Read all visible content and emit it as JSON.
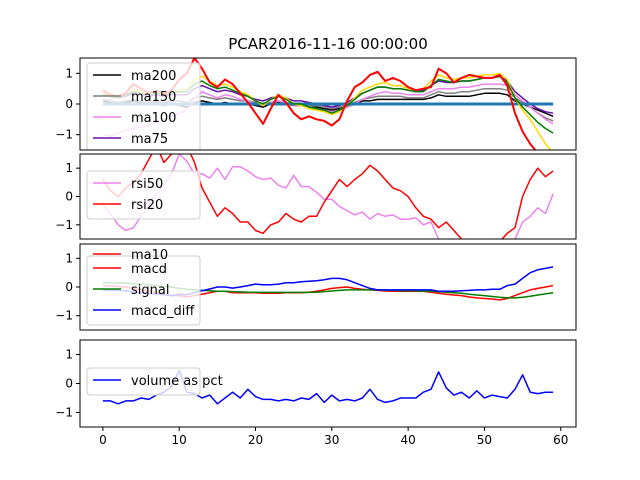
{
  "chart_data": [
    {
      "type": "line",
      "title": "PCAR2016-11-16 00:00:00",
      "ylim": [
        -1.5,
        1.5
      ],
      "yticks": [
        -1,
        0,
        1
      ],
      "xlim": [
        -3,
        62
      ],
      "xticks": [],
      "legend": "upper-left",
      "series": [
        {
          "name": "ma200",
          "color": "#000000",
          "in_legend": true,
          "values": [
            0.1,
            0.05,
            0,
            0.05,
            0.1,
            0.05,
            0,
            0.05,
            -0.05,
            0,
            -0.05,
            -0.1,
            0.05,
            0.1,
            0.05,
            0,
            0.05,
            0,
            0,
            0,
            -0.05,
            -0.1,
            0,
            0.05,
            0,
            -0.05,
            -0.05,
            -0.1,
            -0.1,
            -0.15,
            -0.2,
            -0.15,
            -0.1,
            0,
            0.1,
            0.1,
            0.15,
            0.15,
            0.15,
            0.15,
            0.15,
            0.15,
            0.15,
            0.2,
            0.3,
            0.25,
            0.25,
            0.25,
            0.25,
            0.3,
            0.35,
            0.35,
            0.35,
            0.3,
            0.1,
            0,
            -0.1,
            -0.2,
            -0.3,
            -0.4
          ]
        },
        {
          "name": "ma150",
          "color": "#7f7f7f",
          "in_legend": true,
          "values": [
            0.15,
            0.1,
            0.05,
            0.1,
            0.15,
            0.1,
            0.05,
            0.1,
            0.05,
            0.1,
            0.1,
            0.05,
            0.2,
            0.25,
            0.2,
            0.15,
            0.2,
            0.15,
            0.1,
            0.1,
            0.05,
            0,
            0.05,
            0.1,
            0.05,
            0,
            0,
            -0.05,
            -0.05,
            -0.1,
            -0.15,
            -0.1,
            -0.05,
            0.05,
            0.15,
            0.2,
            0.25,
            0.25,
            0.25,
            0.25,
            0.2,
            0.2,
            0.2,
            0.3,
            0.4,
            0.35,
            0.35,
            0.4,
            0.4,
            0.45,
            0.5,
            0.5,
            0.5,
            0.45,
            0.2,
            0.05,
            -0.1,
            -0.3,
            -0.45,
            -0.55
          ]
        },
        {
          "name": "ma100",
          "color": "#ee82ee",
          "in_legend": true,
          "values": [
            -1.0,
            -1.05,
            -0.95,
            -0.85,
            -0.8,
            -0.75,
            -0.7,
            -0.6,
            -0.5,
            -0.4,
            -0.3,
            -0.2,
            0.2,
            0.4,
            0.3,
            0.2,
            0.3,
            0.25,
            0.15,
            0.1,
            0,
            -0.05,
            0.05,
            0.1,
            0.05,
            -0.05,
            -0.05,
            -0.1,
            -0.15,
            -0.2,
            -0.25,
            -0.2,
            -0.1,
            0,
            0.15,
            0.25,
            0.35,
            0.4,
            0.35,
            0.35,
            0.3,
            0.3,
            0.3,
            0.4,
            0.5,
            0.5,
            0.5,
            0.55,
            0.55,
            0.6,
            0.65,
            0.65,
            0.65,
            0.6,
            0.3,
            0.1,
            -0.1,
            -0.3,
            -0.5,
            -0.65
          ]
        },
        {
          "name": "ma75",
          "color": "#6a0dad",
          "in_legend": true,
          "values": [
            0.3,
            0.25,
            0.2,
            0.25,
            0.35,
            0.3,
            0.25,
            0.3,
            0.25,
            0.3,
            0.3,
            0.3,
            0.5,
            0.6,
            0.5,
            0.4,
            0.45,
            0.4,
            0.3,
            0.25,
            0.15,
            0.1,
            0.2,
            0.25,
            0.2,
            0.1,
            0.1,
            0.05,
            0,
            -0.05,
            -0.1,
            -0.05,
            0.05,
            0.2,
            0.35,
            0.45,
            0.55,
            0.55,
            0.5,
            0.5,
            0.45,
            0.4,
            0.45,
            0.6,
            0.75,
            0.7,
            0.7,
            0.75,
            0.75,
            0.8,
            0.85,
            0.85,
            0.9,
            0.75,
            0.4,
            0.2,
            0,
            -0.15,
            -0.25,
            -0.3
          ]
        },
        {
          "name": "",
          "color": "#1f77b4",
          "in_legend": false,
          "width": 3,
          "values": [
            0,
            0,
            0,
            0,
            0,
            0,
            0,
            0,
            0,
            0,
            0,
            0,
            0,
            0,
            0,
            0,
            0,
            0,
            0,
            0,
            0,
            0,
            0,
            0,
            0,
            0,
            0,
            0,
            0,
            0,
            0,
            0,
            0,
            0,
            0,
            0,
            0,
            0,
            0,
            0,
            0,
            0,
            0,
            0,
            0,
            0,
            0,
            0,
            0,
            0,
            0,
            0,
            0,
            0,
            0,
            0,
            0,
            0,
            0,
            0
          ]
        },
        {
          "name": "",
          "color": "#ffd700",
          "in_legend": false,
          "values": [
            0.35,
            0.3,
            0.25,
            0.3,
            0.45,
            0.4,
            0.35,
            0.4,
            0.35,
            0.4,
            0.45,
            0.5,
            0.8,
            0.9,
            0.75,
            0.6,
            0.65,
            0.55,
            0.4,
            0.3,
            0.1,
            -0.05,
            0.15,
            0.3,
            0.2,
            0,
            -0.05,
            -0.15,
            -0.2,
            -0.25,
            -0.35,
            -0.25,
            -0.05,
            0.2,
            0.45,
            0.55,
            0.65,
            0.7,
            0.6,
            0.6,
            0.5,
            0.45,
            0.5,
            0.75,
            0.95,
            0.85,
            0.8,
            0.85,
            0.85,
            0.9,
            0.95,
            0.95,
            1.0,
            0.8,
            0.2,
            -0.2,
            -0.5,
            -0.9,
            -1.3,
            -1.6
          ]
        },
        {
          "name": "",
          "color": "#008000",
          "in_legend": false,
          "values": [
            0.3,
            0.25,
            0.2,
            0.3,
            0.4,
            0.35,
            0.3,
            0.35,
            0.3,
            0.35,
            0.4,
            0.4,
            0.65,
            0.75,
            0.6,
            0.5,
            0.55,
            0.45,
            0.35,
            0.25,
            0.1,
            0,
            0.15,
            0.25,
            0.15,
            0,
            0,
            -0.1,
            -0.15,
            -0.2,
            -0.3,
            -0.2,
            -0.05,
            0.15,
            0.35,
            0.45,
            0.55,
            0.55,
            0.5,
            0.5,
            0.45,
            0.4,
            0.4,
            0.6,
            0.8,
            0.75,
            0.7,
            0.75,
            0.75,
            0.8,
            0.85,
            0.85,
            0.9,
            0.7,
            0.2,
            -0.1,
            -0.35,
            -0.6,
            -0.8,
            -0.95
          ]
        },
        {
          "name": "",
          "color": "#ff0000",
          "in_legend": false,
          "width": 2,
          "values": [
            0.45,
            0.3,
            0.25,
            0.35,
            0.65,
            0.5,
            0.35,
            0.45,
            0.3,
            0.45,
            0.8,
            1.0,
            1.5,
            1.15,
            0.7,
            0.55,
            0.8,
            0.65,
            0.35,
            0.05,
            -0.3,
            -0.65,
            -0.15,
            0.3,
            0.05,
            -0.3,
            -0.5,
            -0.4,
            -0.5,
            -0.55,
            -0.7,
            -0.5,
            0.1,
            0.55,
            0.7,
            0.95,
            1.05,
            0.75,
            0.85,
            0.75,
            0.55,
            0.45,
            0.5,
            0.55,
            1.15,
            1.0,
            0.7,
            0.85,
            0.95,
            0.9,
            0.85,
            0.85,
            0.95,
            0.6,
            -0.3,
            -0.9,
            -1.3,
            -1.6,
            -1.65,
            -1.7
          ]
        }
      ]
    },
    {
      "type": "line",
      "ylim": [
        -1.5,
        1.5
      ],
      "yticks": [
        -1,
        0,
        1
      ],
      "xlim": [
        -3,
        62
      ],
      "xticks": [],
      "legend": "upper-left",
      "series": [
        {
          "name": "rsi50",
          "color": "#ee82ee",
          "in_legend": true,
          "values": [
            -0.3,
            -0.6,
            -1.0,
            -1.2,
            -1.1,
            -0.7,
            -0.3,
            0.1,
            0.4,
            0.8,
            1.5,
            1.25,
            0.8,
            0.8,
            0.65,
            1.0,
            0.6,
            1.05,
            1.05,
            0.9,
            0.7,
            0.6,
            0.65,
            0.4,
            0.3,
            0.75,
            0.35,
            0.35,
            0.15,
            -0.1,
            -0.1,
            -0.35,
            -0.5,
            -0.65,
            -0.55,
            -0.8,
            -0.6,
            -0.7,
            -0.65,
            -0.8,
            -0.8,
            -0.75,
            -1.0,
            -0.9,
            -1.5,
            -1.8,
            -1.9,
            -1.85,
            -1.7,
            -1.75,
            -1.8,
            -1.9,
            -2.0,
            -1.9,
            -1.5,
            -0.9,
            -0.7,
            -0.4,
            -0.6,
            0.1
          ]
        },
        {
          "name": "rsi20",
          "color": "#ff0000",
          "in_legend": true,
          "values": [
            0.6,
            0.2,
            0.0,
            0.3,
            0.5,
            0.8,
            1.3,
            1.8,
            1.2,
            1.5,
            2.0,
            1.8,
            1.2,
            0.3,
            -0.2,
            -0.7,
            -0.4,
            -0.6,
            -0.9,
            -0.9,
            -1.2,
            -1.3,
            -1.0,
            -0.9,
            -0.6,
            -0.8,
            -0.9,
            -0.7,
            -0.7,
            -0.2,
            0.2,
            0.6,
            0.35,
            0.6,
            0.8,
            1.1,
            0.9,
            0.6,
            0.3,
            0.2,
            0.0,
            -0.4,
            -0.7,
            -0.8,
            -1.1,
            -0.9,
            -1.2,
            -1.5,
            -1.8,
            -2.0,
            -2.2,
            -1.9,
            -1.6,
            -1.3,
            -1.1,
            0.0,
            0.6,
            1.0,
            0.7,
            0.9
          ]
        }
      ]
    },
    {
      "type": "line",
      "ylim": [
        -1.5,
        1.5
      ],
      "yticks": [
        -1,
        0,
        1
      ],
      "xlim": [
        -3,
        62
      ],
      "xticks": [],
      "legend": "upper-left",
      "legend_partial": "ma10",
      "series": [
        {
          "name": "macd",
          "color": "#ff0000",
          "in_legend": true,
          "values": [
            0.05,
            0.03,
            0.02,
            0.0,
            -0.05,
            -0.1,
            -0.15,
            -0.2,
            -0.25,
            -0.3,
            -0.3,
            -0.35,
            -0.3,
            -0.25,
            -0.2,
            -0.15,
            -0.15,
            -0.2,
            -0.2,
            -0.2,
            -0.2,
            -0.22,
            -0.22,
            -0.22,
            -0.2,
            -0.2,
            -0.2,
            -0.18,
            -0.15,
            -0.1,
            -0.05,
            -0.02,
            0.0,
            -0.05,
            -0.08,
            -0.1,
            -0.12,
            -0.14,
            -0.15,
            -0.15,
            -0.15,
            -0.15,
            -0.15,
            -0.18,
            -0.22,
            -0.25,
            -0.28,
            -0.3,
            -0.35,
            -0.38,
            -0.4,
            -0.42,
            -0.45,
            -0.4,
            -0.3,
            -0.2,
            -0.1,
            -0.05,
            0.0,
            0.05
          ]
        },
        {
          "name": "signal",
          "color": "#008000",
          "in_legend": true,
          "values": [
            0.15,
            0.15,
            0.14,
            0.13,
            0.12,
            0.1,
            0.08,
            0.05,
            0.02,
            0.0,
            -0.05,
            -0.08,
            -0.1,
            -0.12,
            -0.13,
            -0.15,
            -0.15,
            -0.16,
            -0.17,
            -0.18,
            -0.18,
            -0.19,
            -0.19,
            -0.19,
            -0.19,
            -0.19,
            -0.19,
            -0.19,
            -0.18,
            -0.16,
            -0.14,
            -0.12,
            -0.1,
            -0.1,
            -0.1,
            -0.1,
            -0.1,
            -0.11,
            -0.12,
            -0.13,
            -0.13,
            -0.13,
            -0.14,
            -0.15,
            -0.16,
            -0.18,
            -0.2,
            -0.22,
            -0.25,
            -0.28,
            -0.3,
            -0.33,
            -0.36,
            -0.38,
            -0.38,
            -0.36,
            -0.32,
            -0.28,
            -0.24,
            -0.2
          ]
        },
        {
          "name": "macd_diff",
          "color": "#0000ff",
          "in_legend": true,
          "values": [
            -0.1,
            -0.12,
            -0.12,
            -0.13,
            -0.17,
            -0.2,
            -0.23,
            -0.25,
            -0.27,
            -0.3,
            -0.25,
            -0.27,
            -0.2,
            -0.13,
            -0.07,
            0.0,
            0.0,
            -0.04,
            0.0,
            0.05,
            0.1,
            0.08,
            0.08,
            0.1,
            0.15,
            0.15,
            0.18,
            0.2,
            0.22,
            0.25,
            0.3,
            0.3,
            0.25,
            0.15,
            0.05,
            -0.05,
            -0.1,
            -0.1,
            -0.1,
            -0.1,
            -0.1,
            -0.1,
            -0.1,
            -0.1,
            -0.15,
            -0.15,
            -0.15,
            -0.13,
            -0.12,
            -0.1,
            -0.1,
            -0.08,
            -0.08,
            0.05,
            0.1,
            0.3,
            0.5,
            0.6,
            0.65,
            0.7
          ]
        }
      ]
    },
    {
      "type": "line",
      "ylim": [
        -1.5,
        1.5
      ],
      "yticks": [
        -1,
        0,
        1
      ],
      "xlim": [
        -3,
        62
      ],
      "xticks": [
        0,
        10,
        20,
        30,
        40,
        50,
        60
      ],
      "legend": "left",
      "series": [
        {
          "name": "volume as pct",
          "color": "#0000ff",
          "in_legend": true,
          "values": [
            -0.6,
            -0.6,
            -0.7,
            -0.6,
            -0.6,
            -0.5,
            -0.55,
            -0.4,
            -0.3,
            -0.1,
            0.45,
            -0.3,
            -0.35,
            -0.5,
            -0.4,
            -0.7,
            -0.5,
            -0.3,
            -0.5,
            -0.2,
            -0.45,
            -0.55,
            -0.55,
            -0.6,
            -0.55,
            -0.6,
            -0.5,
            -0.55,
            -0.35,
            -0.65,
            -0.4,
            -0.6,
            -0.55,
            -0.6,
            -0.5,
            -0.2,
            -0.55,
            -0.65,
            -0.6,
            -0.5,
            -0.5,
            -0.5,
            -0.3,
            -0.2,
            0.4,
            -0.15,
            -0.4,
            -0.3,
            -0.5,
            -0.25,
            -0.5,
            -0.4,
            -0.45,
            -0.5,
            -0.2,
            0.3,
            -0.3,
            -0.35,
            -0.3,
            -0.3
          ]
        }
      ]
    }
  ]
}
